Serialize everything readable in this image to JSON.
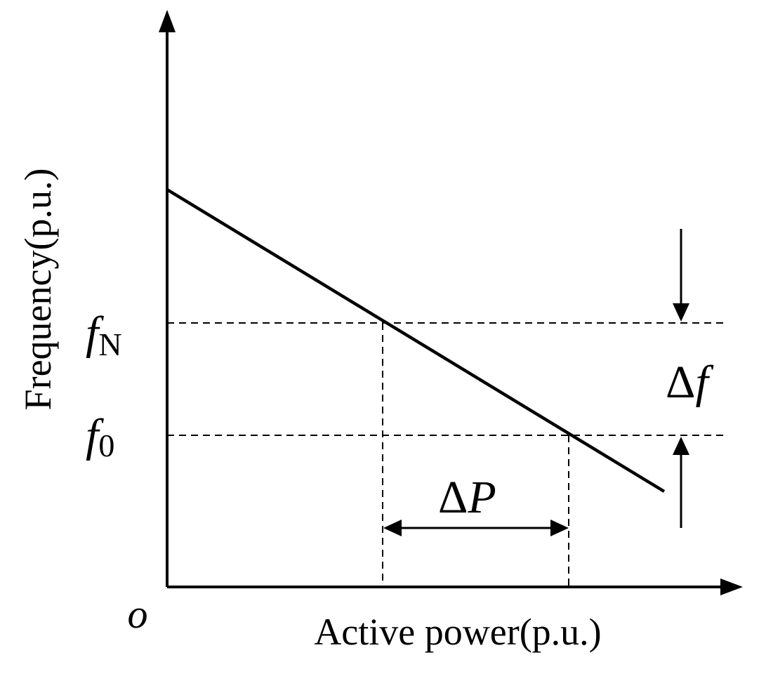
{
  "axes": {
    "x_label": "Active power(p.u.)",
    "y_label": "Frequency(p.u.)",
    "origin_label": "o"
  },
  "levels": {
    "fN": {
      "symbol": "f",
      "subscript": "N"
    },
    "f0": {
      "symbol": "f",
      "subscript": "0"
    }
  },
  "annotations": {
    "delta_f": {
      "delta": "Δ",
      "symbol": "f"
    },
    "delta_P": {
      "delta": "Δ",
      "symbol": "P"
    }
  },
  "colors": {
    "ink": "#000000",
    "background": "#ffffff"
  }
}
